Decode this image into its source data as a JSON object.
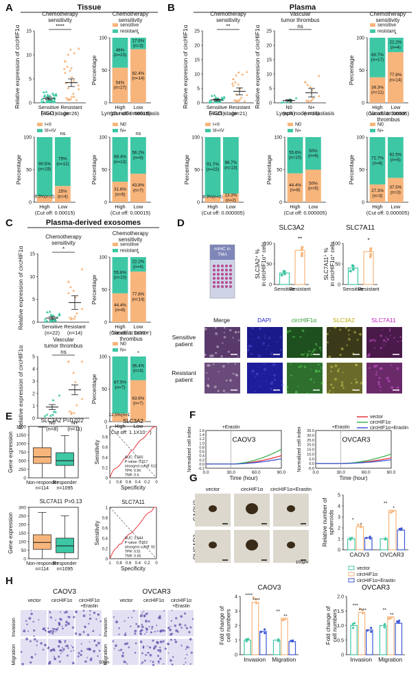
{
  "colors": {
    "teal": "#3ec7a5",
    "orange": "#f7b57c",
    "red": "#e8323c",
    "green": "#3fb34f",
    "blue": "#3b56d6",
    "pink": "#f29ac4"
  },
  "panel_labels": {
    "A": "A",
    "B": "B",
    "C": "C",
    "D": "D",
    "E": "E",
    "F": "F",
    "G": "G",
    "H": "H"
  },
  "sections": {
    "A": "Tissue",
    "B": "Plasma",
    "C": "Plasma-derived exosomes"
  },
  "chart_data": [
    {
      "id": "A1",
      "type": "scatter",
      "title": "Chemotherapy sensitivity",
      "ylabel": "Relative expression of circHIF1α",
      "ylim": [
        0,
        15
      ],
      "yticks": [
        0,
        5,
        10,
        15
      ],
      "groups": [
        {
          "name": "Sensitive",
          "n": "(n=41)",
          "mean": 0.9,
          "sem": 0.25
        },
        {
          "name": "Resistant",
          "n": "(n=26)",
          "mean": 4.2,
          "sem": 0.8
        }
      ],
      "sig": "****"
    },
    {
      "id": "A2",
      "type": "bar",
      "title": "Chemotherapy sensitivity",
      "ylabel": "Percentage",
      "categories": [
        "High",
        "Low"
      ],
      "series": [
        {
          "name": "sensitive",
          "values": [
            54,
            82.4
          ]
        },
        {
          "name": "resistant",
          "values": [
            46,
            17.6
          ]
        }
      ],
      "labels": [
        [
          "54%\n(n=27)",
          "82.4%\n(n=14)"
        ],
        [
          "46%\n(n=23)",
          "17.6%\n(n=3)"
        ]
      ],
      "cutoff": "(Cut off: 0.00015)",
      "sig": "*"
    },
    {
      "id": "A3",
      "type": "bar",
      "title": "FIGO stage",
      "ylabel": "Percentage",
      "categories": [
        "High",
        "Low"
      ],
      "series": [
        {
          "name": "I+II",
          "values": [
            9.5,
            25
          ]
        },
        {
          "name": "III+IV",
          "values": [
            90.5,
            75
          ]
        }
      ],
      "labels": [
        [
          "9.5%(n=2)",
          "25%\n(n=4)"
        ],
        [
          "90.5%\n(n=19)",
          "75%\n(n=12)"
        ]
      ],
      "cutoff": "(Cut off: 0.00015)",
      "sig": "ns"
    },
    {
      "id": "A4",
      "type": "bar",
      "title": "Lymph node metastasis",
      "ylabel": "Percentage",
      "categories": [
        "High",
        "Low"
      ],
      "series": [
        {
          "name": "N0",
          "values": [
            31.6,
            43.8
          ]
        },
        {
          "name": "N+",
          "values": [
            68.4,
            56.2
          ]
        }
      ],
      "labels": [
        [
          "31.6%\n(n=6)",
          "43.8%\n(n=7)"
        ],
        [
          "68.4%\n(n=13)",
          "56.2%\n(n=9)"
        ]
      ],
      "cutoff": "(Cut off: 0.00015)",
      "sig": "ns"
    },
    {
      "id": "B1",
      "type": "scatter",
      "title": "Chemotherapy sensitivity",
      "ylabel": "Relative expression of circHIF1α",
      "ylim": [
        0,
        25
      ],
      "yticks": [
        0,
        5,
        10,
        15,
        20,
        25
      ],
      "groups": [
        {
          "name": "Sensitive",
          "n": "(n=25)",
          "mean": 1.0,
          "sem": 0.3
        },
        {
          "name": "Resistant",
          "n": "(n=21)",
          "mean": 4.0,
          "sem": 1.2
        }
      ],
      "sig": "**"
    },
    {
      "id": "B2",
      "type": "scatter",
      "title": "Vascular tumor thrombus",
      "ylabel": "Relative expression of circHIF1α",
      "ylim": [
        0,
        25
      ],
      "yticks": [
        0,
        5,
        10,
        15,
        20,
        25
      ],
      "groups": [
        {
          "name": "N0",
          "n": "(n=6)",
          "mean": 0.8,
          "sem": 0.3
        },
        {
          "name": "N+",
          "n": "(n=13)",
          "mean": 3.5,
          "sem": 1.5
        }
      ],
      "sig": "ns"
    },
    {
      "id": "B3",
      "type": "bar",
      "title": "Chemotherapy sensitivity",
      "ylabel": "Percentage",
      "categories": [
        "High",
        "Low"
      ],
      "series": [
        {
          "name": "sensitive",
          "values": [
            39.3,
            77.8
          ]
        },
        {
          "name": "resistant",
          "values": [
            60.7,
            22.2
          ]
        }
      ],
      "labels": [
        [
          "39.3%\n(n=11)",
          "77.8%\n(n=14)"
        ],
        [
          "60.7%\n(n=17)",
          "22.2%\n(n=4)"
        ]
      ],
      "cutoff": "(Cut off: 0.000005)",
      "sig": "*"
    },
    {
      "id": "B4",
      "type": "bar",
      "title": "FIGO stage",
      "ylabel": "Percentage",
      "categories": [
        "High",
        "Low"
      ],
      "series": [
        {
          "name": "I+II",
          "values": [
            8.3,
            13.3
          ]
        },
        {
          "name": "III+IV",
          "values": [
            91.7,
            86.7
          ]
        }
      ],
      "labels": [
        [
          "8.3%(n=2)",
          "13.3%\n(n=2)"
        ],
        [
          "91.7%\n(n=22)",
          "86.7%\n(n=13)"
        ]
      ],
      "cutoff": "(Cut off: 0.000005)",
      "sig": ""
    },
    {
      "id": "B5",
      "type": "bar",
      "title": "Lymph node metastasis",
      "ylabel": "Percentage",
      "categories": [
        "High",
        "Low"
      ],
      "series": [
        {
          "name": "N0",
          "values": [
            44.4,
            50
          ]
        },
        {
          "name": "N+",
          "values": [
            55.6,
            50
          ]
        }
      ],
      "labels": [
        [
          "44.4%\n(n=8)",
          "50%\n(n=6)"
        ],
        [
          "55.6%\n(n=10)",
          "50%\n(n=6)"
        ]
      ],
      "cutoff": "(Cut off: 0.000005)",
      "sig": ""
    },
    {
      "id": "B6",
      "type": "bar",
      "title": "Vascular tumor thrombus",
      "ylabel": "Percentage",
      "categories": [
        "High",
        "Low"
      ],
      "series": [
        {
          "name": "N0",
          "values": [
            27.3,
            37.5
          ]
        },
        {
          "name": "N+",
          "values": [
            72.7,
            62.5
          ]
        }
      ],
      "labels": [
        [
          "27.3%\n(n=3)",
          "37.5%\n(n=3)"
        ],
        [
          "72.7%\n(n=8)",
          "62.5%\n(n=5)"
        ]
      ],
      "cutoff": "(Cut off: 0.000005)",
      "sig": ""
    },
    {
      "id": "C1",
      "type": "scatter",
      "title": "Chemotherapy sensitivity",
      "ylabel": "Relative expression of circHIF1α",
      "ylim": [
        0,
        15
      ],
      "yticks": [
        0,
        5,
        10,
        15
      ],
      "groups": [
        {
          "name": "Sensitive",
          "n": "(n=22)",
          "mean": 0.9,
          "sem": 0.3
        },
        {
          "name": "Resistant",
          "n": "(n=14)",
          "mean": 4.3,
          "sem": 1.5
        }
      ],
      "sig": "*"
    },
    {
      "id": "C2",
      "type": "bar",
      "title": "Chemotherapy sensitivity",
      "ylabel": "Percentage",
      "categories": [
        "High",
        "Low"
      ],
      "series": [
        {
          "name": "sensitive",
          "values": [
            44.4,
            77.8
          ]
        },
        {
          "name": "resistant",
          "values": [
            55.6,
            22.2
          ]
        }
      ],
      "labels": [
        [
          "44.4%\n(n=8)",
          "77.8%\n(n=14)"
        ],
        [
          "55.6%\n(n=10)",
          "22.2%\n(n=4)"
        ]
      ],
      "cutoff": "(Cut off: 1.1X10⁻⁷)",
      "sig": "*"
    },
    {
      "id": "C3",
      "type": "scatter",
      "title": "Vascular tumor thrombus",
      "ylabel": "Relative expression of circHIF1α",
      "ylim": [
        0,
        5
      ],
      "yticks": [
        0,
        1,
        2,
        3,
        4,
        5
      ],
      "groups": [
        {
          "name": "N0",
          "n": "(n=8)",
          "mean": 0.9,
          "sem": 0.2
        },
        {
          "name": "N+",
          "n": "(n=11)",
          "mean": 2.3,
          "sem": 0.4
        }
      ],
      "sig": "ns"
    },
    {
      "id": "C4",
      "type": "bar",
      "title": "Vascular tumor thrombus",
      "ylabel": "Percentage",
      "categories": [
        "High",
        "Low"
      ],
      "series": [
        {
          "name": "N0",
          "values": [
            12.5,
            63.6
          ]
        },
        {
          "name": "N+",
          "values": [
            87.5,
            36.4
          ]
        }
      ],
      "labels": [
        [
          "12.5%(n=1)",
          "63.6%\n(n=7)"
        ],
        [
          "87.5%\n(n=7)",
          "36.4%\n(n=4)"
        ]
      ],
      "cutoff": "(Cut off: 1.1X10⁻⁷)",
      "sig": "*"
    },
    {
      "id": "D1",
      "type": "bar",
      "title": "SLC3A2",
      "ylabel": "SLC3A2⁺ % in circHIF1α⁺ cells",
      "categories": [
        "Sensitive",
        "Resistant"
      ],
      "values": [
        28,
        83
      ],
      "ylim": [
        0,
        100
      ],
      "yticks": [
        0,
        50,
        100
      ],
      "sig": "**"
    },
    {
      "id": "D2",
      "type": "bar",
      "title": "SLC7A11",
      "ylabel": "SLC7A11⁺ % in circHIF1α⁺ cells",
      "categories": [
        "Sensitive",
        "Resistant"
      ],
      "values": [
        40,
        80
      ],
      "ylim": [
        0,
        100
      ],
      "yticks": [
        0,
        50,
        100
      ],
      "sig": "*"
    },
    {
      "id": "E1",
      "type": "box",
      "title": "SLC3A2",
      "pvalue": "P=0.022",
      "ylabel": "Gene expression",
      "categories": [
        "Non-responder",
        "Responder"
      ],
      "n": [
        "n=114",
        "n=1095"
      ],
      "ylim": [
        0,
        1500
      ],
      "yticks": [
        0,
        250,
        500,
        750,
        1000,
        1250,
        1500
      ],
      "boxes": [
        {
          "min": 0,
          "q1": 420,
          "median": 610,
          "q3": 880,
          "max": 1480
        },
        {
          "min": 0,
          "q1": 360,
          "median": 500,
          "q3": 730,
          "max": 1230
        }
      ]
    },
    {
      "id": "E2",
      "type": "roc",
      "title": "SLC3A2",
      "xlabel": "Specificity",
      "ylabel": "Sensitivity",
      "annot": [
        "AUC: 0.565",
        "P-value: 0.017",
        "strongest cutoff: 612",
        "TPR: 0.56",
        "TNR: 0.6"
      ]
    },
    {
      "id": "E3",
      "type": "box",
      "title": "SLC7A11",
      "pvalue": "P=0.13",
      "ylabel": "Gene expression",
      "categories": [
        "Non-responder",
        "Responder"
      ],
      "n": [
        "n=114",
        "n=1095"
      ],
      "ylim": [
        0,
        300
      ],
      "yticks": [
        0,
        50,
        100,
        150,
        200,
        250,
        300
      ],
      "boxes": [
        {
          "min": 0,
          "q1": 55,
          "median": 95,
          "q3": 140,
          "max": 270
        },
        {
          "min": 0,
          "q1": 35,
          "median": 75,
          "q3": 120,
          "max": 250
        }
      ]
    },
    {
      "id": "E4",
      "type": "roc",
      "title": "SLC7A11",
      "xlabel": "Specificity",
      "ylabel": "Sensitivity",
      "annot": [
        "AUC: 0.544",
        "P-value: 0.052",
        "strongest cutoff: 92",
        "TPR: 0.51",
        "TNR: 0.65"
      ]
    },
    {
      "id": "F1",
      "type": "line",
      "title": "CAOV3",
      "xlabel": "Time (hour)",
      "ylabel": "Normalized cell index",
      "ylim": [
        -0.2,
        1.6
      ],
      "yticks": [
        -0.2,
        0,
        0.2,
        0.4,
        0.6,
        0.8,
        1,
        1.2,
        1.4,
        1.6
      ],
      "ytick_labels": [
        "-0.2",
        "0.0",
        "0.2",
        "0.4",
        "0.6",
        "0.8",
        "1.0",
        "1.2",
        "1.4",
        "1.6"
      ],
      "xticks": [
        "0.0",
        "30.0",
        "60.0",
        "90.0"
      ],
      "marker": "+Erastin",
      "series": [
        {
          "name": "vector",
          "end": 0.4
        },
        {
          "name": "circHIF1α",
          "end": 0.7
        },
        {
          "name": "circHIF1α+Erastin",
          "end": 0.25
        }
      ]
    },
    {
      "id": "F2",
      "type": "line",
      "title": "OVCAR3",
      "xlabel": "Time (hour)",
      "ylabel": "Normalized cell index",
      "ylim": [
        -5,
        35
      ],
      "yticks": [
        -5,
        0,
        5,
        10,
        15,
        20,
        25,
        30,
        35
      ],
      "ytick_labels": [
        "-5.0",
        "0.0",
        "5.0",
        "10.0",
        "15.0",
        "20.0",
        "25.0",
        "30.0",
        "35.0"
      ],
      "xticks": [
        "0.0",
        "30.0",
        "60.0",
        "90.0"
      ],
      "marker": "+Erastin",
      "series": [
        {
          "name": "vector",
          "end": 6
        },
        {
          "name": "circHIF1α",
          "end": 10
        },
        {
          "name": "circHIF1α+Erastin",
          "end": 4
        }
      ]
    },
    {
      "id": "G1",
      "type": "bar",
      "ylabel": "Relative number of spheroids",
      "categories": [
        "CAOV3",
        "OVCAR3"
      ],
      "ylim": [
        0,
        5
      ],
      "yticks": [
        0,
        1,
        2,
        3,
        4,
        5
      ],
      "series": [
        {
          "name": "vector",
          "values": [
            1,
            1
          ]
        },
        {
          "name": "circHIF1α",
          "values": [
            2.1,
            3.6
          ]
        },
        {
          "name": "circHIF1α+Erastin",
          "values": [
            1.1,
            1.8
          ]
        }
      ],
      "sigs": [
        "*",
        "*",
        "**",
        "*"
      ]
    },
    {
      "id": "H1",
      "type": "bar",
      "title": "CAOV3",
      "ylabel": "Fold change of cell numbers",
      "categories": [
        "Invasion",
        "Migration"
      ],
      "ylim": [
        0,
        4
      ],
      "yticks": [
        0,
        1,
        2,
        3,
        4
      ],
      "series": [
        {
          "name": "vector",
          "values": [
            1,
            1
          ]
        },
        {
          "name": "circHIF1α",
          "values": [
            3.6,
            2.5
          ]
        },
        {
          "name": "circHIF1α+Erastin",
          "values": [
            1.6,
            0.9
          ]
        }
      ],
      "sigs": [
        "****",
        "****",
        "**",
        "**"
      ]
    },
    {
      "id": "H2",
      "type": "bar",
      "title": "OVCAR3",
      "ylabel": "Fold change of cell numbers",
      "categories": [
        "Invasion",
        "Migration"
      ],
      "ylim": [
        0,
        2
      ],
      "yticks": [
        0,
        0.5,
        1,
        1.5,
        2
      ],
      "ytick_labels": [
        "0",
        "0.5",
        "1.0",
        "1.5",
        "2.0"
      ],
      "series": [
        {
          "name": "vector",
          "values": [
            1,
            1
          ]
        },
        {
          "name": "circHIF1α",
          "values": [
            1.45,
            1.3
          ]
        },
        {
          "name": "circHIF1α+Erastin",
          "values": [
            0.85,
            1.08
          ]
        }
      ],
      "sigs": [
        "***",
        "****",
        "**",
        "**"
      ]
    }
  ],
  "legends": {
    "sens_res": [
      "sensitive",
      "resistant"
    ],
    "figo": [
      "I+II",
      "III+IV"
    ],
    "n0_np": [
      "N0",
      "N+"
    ],
    "treat": [
      "vector",
      "circHIF1α",
      "circHIF1α+Erastin"
    ]
  },
  "panel_d": {
    "tma_label": "mIHC in TMA",
    "channels": [
      "Merge",
      "DAPI",
      "circHIF1α",
      "SLC3A2",
      "SLC7A11"
    ],
    "rows": [
      "Sensitive patient",
      "Resistant patient"
    ],
    "scalebar": "50μm"
  },
  "panel_g": {
    "columns": [
      "vector",
      "circHIF1α",
      "circHIF1α+Erastin"
    ],
    "rows": [
      "CAOV3",
      "OVCAR3"
    ],
    "scalebar": "100μm"
  },
  "panel_h": {
    "groups": [
      "CAOV3",
      "OVCAR3"
    ],
    "columns": [
      "vector",
      "circHIF1α",
      "circHIF1α\n+Erastin"
    ],
    "rows": [
      "Invasion",
      "Migration"
    ],
    "scalebar": "50μm"
  }
}
